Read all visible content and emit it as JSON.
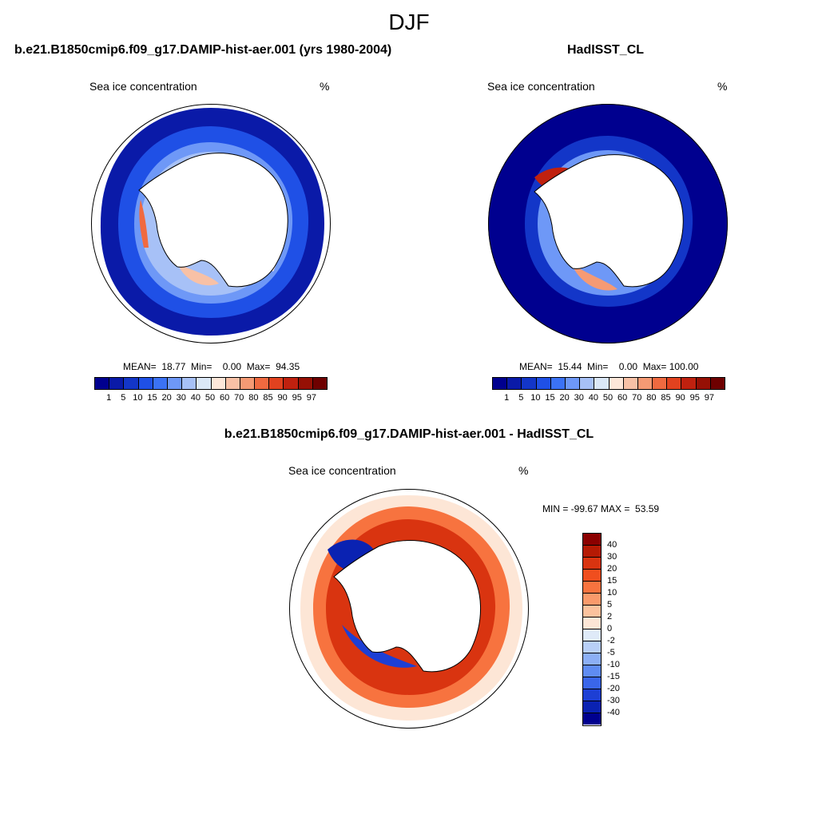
{
  "figure": {
    "season": "DJF"
  },
  "panels": {
    "model": {
      "title": "b.e21.B1850cmip6.f09_g17.DAMIP-hist-aer.001 (yrs 1980-2004)",
      "variable": "Sea ice concentration",
      "units": "%",
      "stats": "MEAN=  18.77  Min=    0.00  Max=  94.35"
    },
    "obs": {
      "title": "HadISST_CL",
      "variable": "Sea ice concentration",
      "units": "%",
      "stats": "MEAN=  15.44  Min=    0.00  Max= 100.00"
    },
    "diff": {
      "title": "b.e21.B1850cmip6.f09_g17.DAMIP-hist-aer.001 - HadISST_CL",
      "variable": "Sea ice concentration",
      "units": "%",
      "stats": "MIN = -99.67 MAX =  53.59"
    }
  },
  "colorbars": {
    "abs_levels": [
      "1",
      "5",
      "10",
      "15",
      "20",
      "30",
      "40",
      "50",
      "60",
      "70",
      "80",
      "85",
      "90",
      "95",
      "97"
    ],
    "abs_colors": [
      "#00008f",
      "#0a1aa8",
      "#1336c8",
      "#1f50e6",
      "#3b72f5",
      "#6e98f7",
      "#a7c1f7",
      "#dbe8f7",
      "#fde7d9",
      "#f8c1a6",
      "#f59a74",
      "#f06a40",
      "#e2421f",
      "#c0210f",
      "#961005",
      "#6e0000"
    ],
    "diff_levels": [
      "40",
      "30",
      "20",
      "15",
      "10",
      "5",
      "2",
      "0",
      "-2",
      "-5",
      "-10",
      "-15",
      "-20",
      "-30",
      "-40"
    ],
    "diff_colors": [
      "#8b0000",
      "#b51a04",
      "#d93410",
      "#f04e1e",
      "#f7733f",
      "#f99a6b",
      "#fbc29d",
      "#fde6d6",
      "#dfeaf8",
      "#b8cff7",
      "#8caff5",
      "#5f8cf2",
      "#3a66ea",
      "#1d3fd4",
      "#0a22b2",
      "#00008f"
    ]
  },
  "colors": {
    "land": "#ffffff",
    "ocean_open": "#00008f",
    "coast": "#000000"
  }
}
